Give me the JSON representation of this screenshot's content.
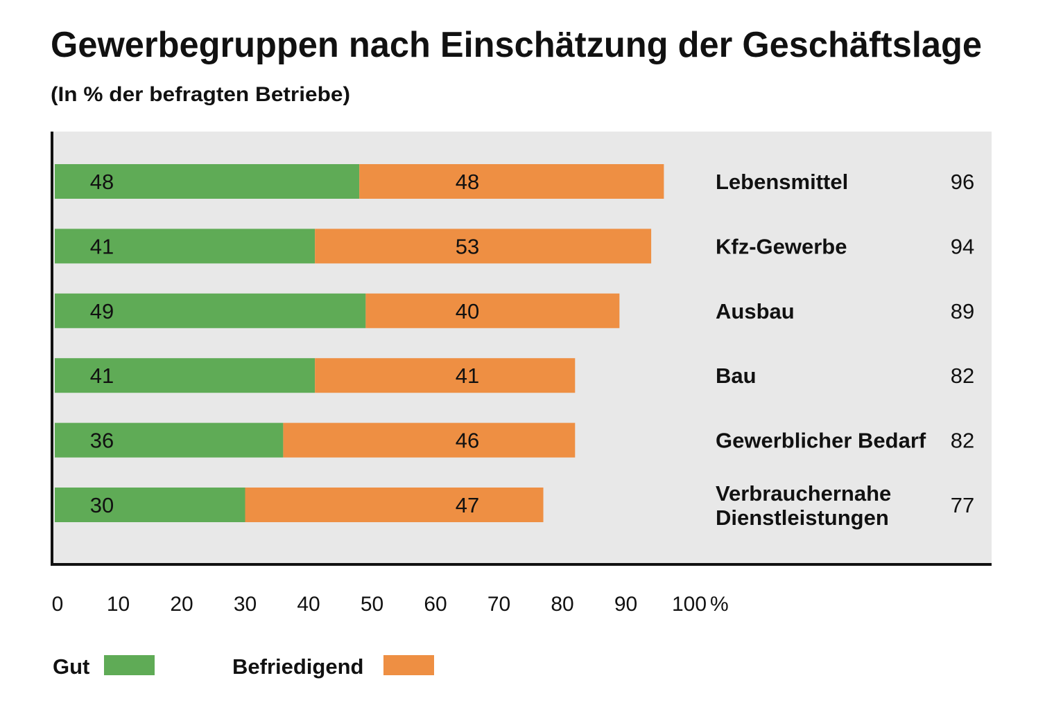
{
  "chart_data": {
    "type": "bar",
    "orientation": "horizontal",
    "stacked": true,
    "title": "Gewerbegruppen nach Einschätzung der Geschäftslage",
    "subtitle": "(In % der befragten Betriebe)",
    "categories": [
      "Lebensmittel",
      "Kfz-Gewerbe",
      "Ausbau",
      "Bau",
      "Gewerblicher Bedarf",
      "Verbrauchernahe\nDienstleistungen"
    ],
    "series": [
      {
        "name": "Gut",
        "color": "#5fab56",
        "values": [
          48,
          41,
          49,
          41,
          36,
          30
        ]
      },
      {
        "name": "Befriedigend",
        "color": "#ee8f43",
        "values": [
          48,
          53,
          40,
          41,
          46,
          47
        ]
      }
    ],
    "totals": [
      96,
      94,
      89,
      82,
      82,
      77
    ],
    "xlim": [
      0,
      100
    ],
    "xticks": [
      0,
      10,
      20,
      30,
      40,
      50,
      60,
      70,
      80,
      90,
      100
    ],
    "xunit": "%",
    "grid": false,
    "legend_position": "bottom-left",
    "background_color": "#e8e8e8"
  }
}
